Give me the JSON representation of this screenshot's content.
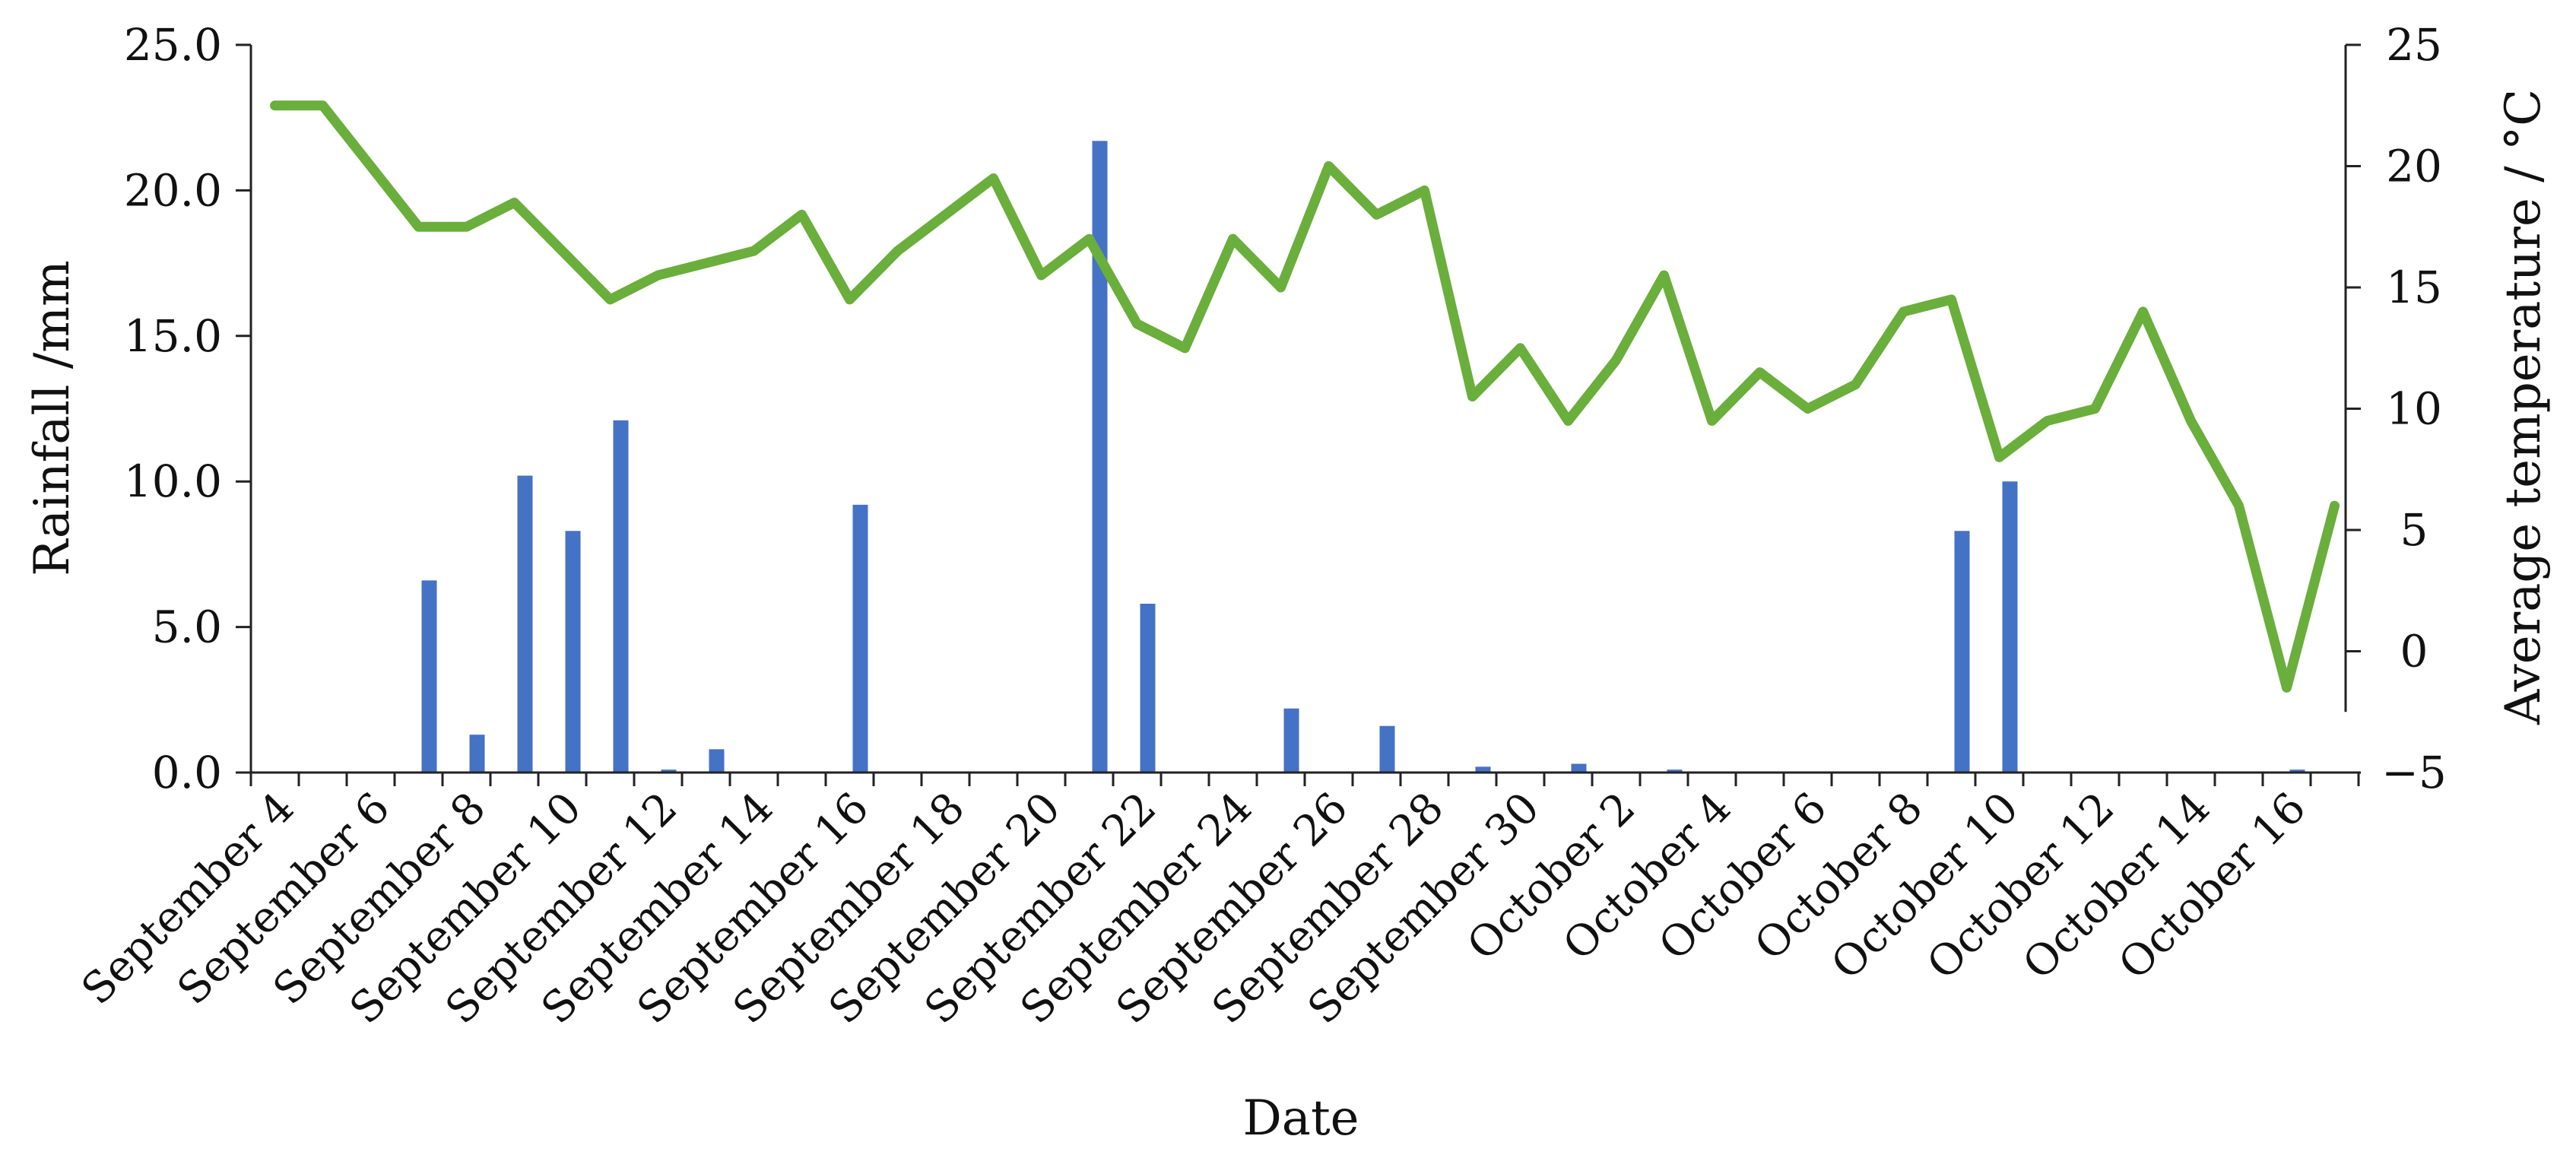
{
  "chart_data": {
    "type": "bar+line",
    "xlabel": "Date",
    "y_left_label": "Rainfall /mm",
    "y_right_label": "Average temperature / °C",
    "y_left_range": [
      0,
      25
    ],
    "y_left_ticks": [
      "0.0",
      "5.0",
      "10.0",
      "15.0",
      "20.0",
      "25.0"
    ],
    "y_right_range": [
      -5,
      25
    ],
    "y_right_ticks": [
      "−5",
      "0",
      "5",
      "10",
      "15",
      "20",
      "25"
    ],
    "x_tick_labels": [
      "September 4",
      "September 6",
      "September 8",
      "September 10",
      "September 12",
      "September 14",
      "September 16",
      "September 18",
      "September 20",
      "September 22",
      "September 24",
      "September 26",
      "September 28",
      "September 30",
      "October 2",
      "October 4",
      "October 6",
      "October 8",
      "October 10",
      "October 12",
      "October 14",
      "October 16"
    ],
    "categories": [
      "September 4",
      "September 5",
      "September 6",
      "September 7",
      "September 8",
      "September 9",
      "September 10",
      "September 11",
      "September 12",
      "September 13",
      "September 14",
      "September 15",
      "September 16",
      "September 17",
      "September 18",
      "September 19",
      "September 20",
      "September 21",
      "September 22",
      "September 23",
      "September 24",
      "September 25",
      "September 26",
      "September 27",
      "September 28",
      "September 29",
      "September 30",
      "October 1",
      "October 2",
      "October 3",
      "October 4",
      "October 5",
      "October 6",
      "October 7",
      "October 8",
      "October 9",
      "October 10",
      "October 11",
      "October 12",
      "October 13",
      "October 14",
      "October 15",
      "October 16",
      "October 17"
    ],
    "series": [
      {
        "type": "bar",
        "axis": "left",
        "color": "#4472C4",
        "values": [
          0,
          0,
          0,
          6.6,
          1.3,
          10.2,
          8.3,
          12.1,
          0.1,
          0.8,
          0,
          0,
          9.2,
          0,
          0,
          0,
          0,
          21.7,
          5.8,
          0,
          0,
          2.2,
          0,
          1.6,
          0,
          0.2,
          0,
          0.3,
          0,
          0.1,
          0,
          0,
          0,
          0,
          0,
          8.3,
          10.0,
          0,
          0,
          0,
          0,
          0,
          0.1,
          0
        ]
      },
      {
        "type": "line",
        "axis": "right",
        "color": "#6AAE3C",
        "values": [
          22.5,
          22.5,
          20,
          17.5,
          17.5,
          18.5,
          16.5,
          14.5,
          15.5,
          16,
          16.5,
          18,
          14.5,
          16.5,
          18,
          19.5,
          15.5,
          17,
          13.5,
          12.5,
          17,
          15,
          20,
          18,
          19,
          10.5,
          12.5,
          9.5,
          12,
          15.5,
          9.5,
          11.5,
          10,
          11,
          14,
          14.5,
          8,
          9.5,
          10,
          14,
          9.5,
          6,
          -1.5,
          6
        ]
      }
    ],
    "grid": false,
    "legend": "none"
  }
}
